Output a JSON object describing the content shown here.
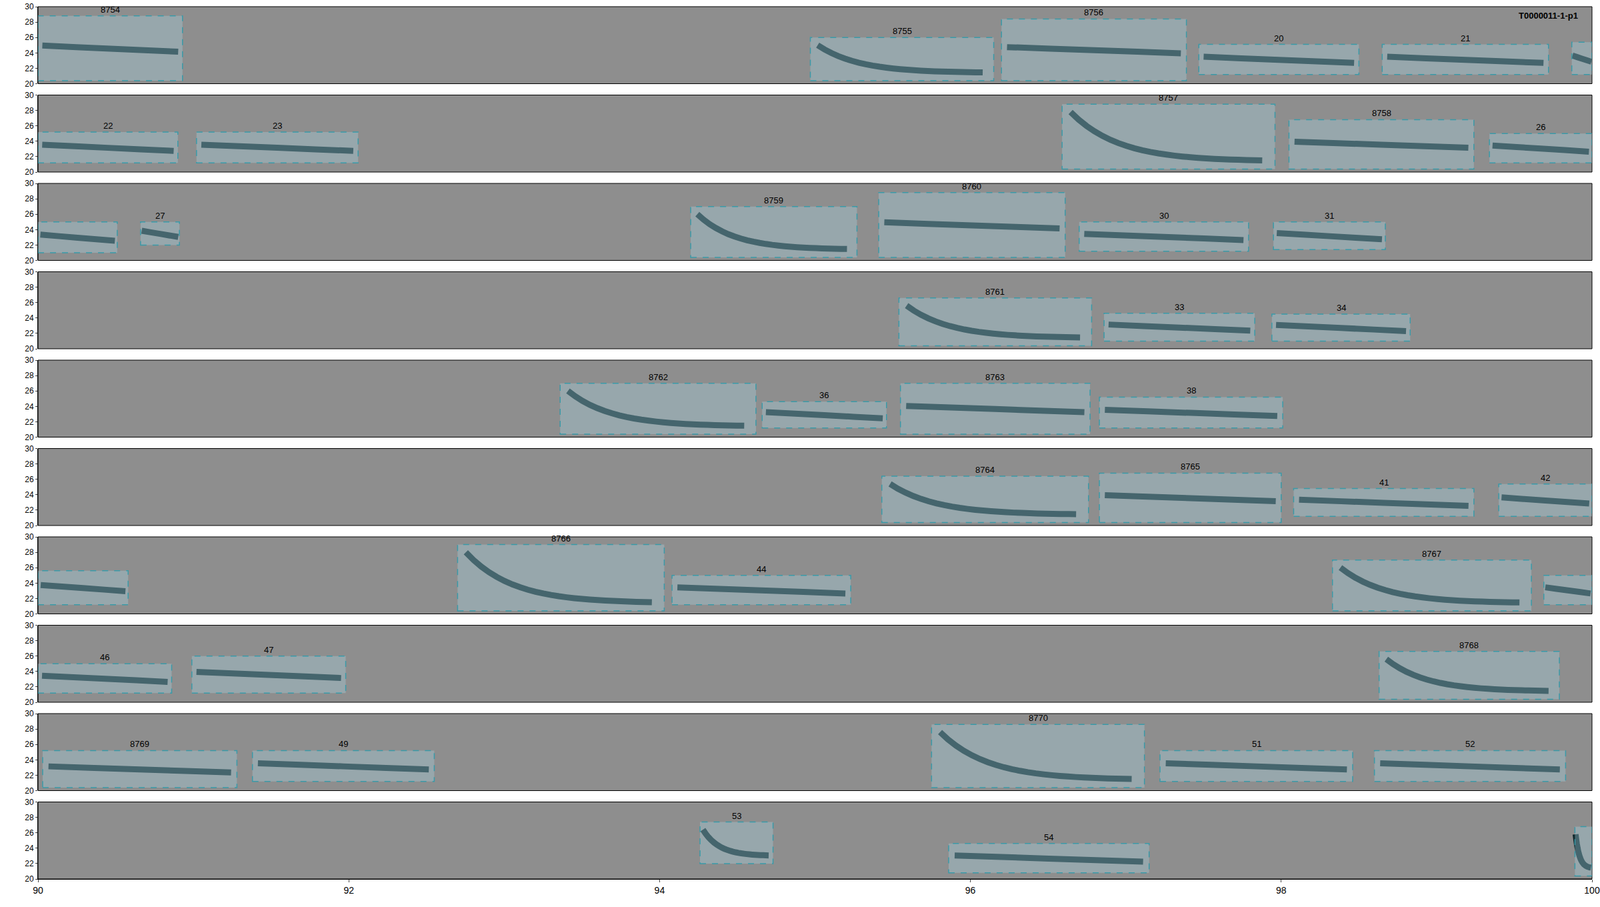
{
  "chart_data": {
    "type": "spectrogram",
    "title": "T0000011-1-p1",
    "color": "#3a9aa8",
    "xlim": [
      90,
      100
    ],
    "xticks": [
      90,
      92,
      94,
      96,
      98,
      100
    ],
    "ylim": [
      20,
      30
    ],
    "yticks": [
      20,
      22,
      24,
      26,
      28,
      30
    ],
    "panels": [
      {
        "boxes": [
          {
            "label": "8754",
            "x": [
              90.0,
              90.93
            ],
            "y": [
              20.4,
              28.8
            ],
            "marker": "flat"
          },
          {
            "label": "8755",
            "x": [
              94.97,
              96.15
            ],
            "y": [
              20.4,
              26.0
            ],
            "marker": "downsweep"
          },
          {
            "label": "8756",
            "x": [
              96.2,
              97.39
            ],
            "y": [
              20.4,
              28.4
            ],
            "marker": "flat"
          },
          {
            "label": "20",
            "x": [
              97.47,
              98.5
            ],
            "y": [
              21.2,
              25.1
            ],
            "marker": "flat"
          },
          {
            "label": "21",
            "x": [
              98.65,
              99.72
            ],
            "y": [
              21.2,
              25.1
            ],
            "marker": "flat"
          },
          {
            "label": null,
            "x": [
              99.87,
              100.0
            ],
            "y": [
              21.2,
              25.4
            ],
            "marker": "flat"
          }
        ]
      },
      {
        "boxes": [
          {
            "label": "22",
            "x": [
              90.0,
              90.9
            ],
            "y": [
              21.2,
              25.2
            ],
            "marker": "flat"
          },
          {
            "label": "23",
            "x": [
              91.02,
              92.06
            ],
            "y": [
              21.2,
              25.2
            ],
            "marker": "flat"
          },
          {
            "label": "8757",
            "x": [
              96.59,
              97.96
            ],
            "y": [
              20.4,
              28.8
            ],
            "marker": "downsweep"
          },
          {
            "label": "8758",
            "x": [
              98.05,
              99.24
            ],
            "y": [
              20.4,
              26.8
            ],
            "marker": "flat"
          },
          {
            "label": "26",
            "x": [
              99.34,
              100.0
            ],
            "y": [
              21.2,
              25.0
            ],
            "marker": "flat"
          }
        ]
      },
      {
        "boxes": [
          {
            "label": null,
            "x": [
              90.0,
              90.51
            ],
            "y": [
              21.0,
              25.0
            ],
            "marker": "flat"
          },
          {
            "label": "27",
            "x": [
              90.66,
              90.91
            ],
            "y": [
              22.0,
              25.0
            ],
            "marker": "flat"
          },
          {
            "label": "8759",
            "x": [
              94.2,
              95.27
            ],
            "y": [
              20.4,
              27.0
            ],
            "marker": "downsweep"
          },
          {
            "label": "8760",
            "x": [
              95.41,
              96.61
            ],
            "y": [
              20.4,
              28.8
            ],
            "marker": "flat"
          },
          {
            "label": "30",
            "x": [
              96.7,
              97.79
            ],
            "y": [
              21.2,
              25.0
            ],
            "marker": "flat"
          },
          {
            "label": "31",
            "x": [
              97.95,
              98.67
            ],
            "y": [
              21.4,
              25.0
            ],
            "marker": "flat"
          }
        ]
      },
      {
        "boxes": [
          {
            "label": "8761",
            "x": [
              95.54,
              96.78
            ],
            "y": [
              20.4,
              26.6
            ],
            "marker": "downsweep"
          },
          {
            "label": "33",
            "x": [
              96.86,
              97.83
            ],
            "y": [
              21.0,
              24.6
            ],
            "marker": "flat"
          },
          {
            "label": "34",
            "x": [
              97.94,
              98.83
            ],
            "y": [
              21.0,
              24.5
            ],
            "marker": "flat"
          }
        ]
      },
      {
        "boxes": [
          {
            "label": "8762",
            "x": [
              93.36,
              94.62
            ],
            "y": [
              20.4,
              27.0
            ],
            "marker": "downsweep"
          },
          {
            "label": "36",
            "x": [
              94.66,
              95.46
            ],
            "y": [
              21.2,
              24.6
            ],
            "marker": "flat"
          },
          {
            "label": "8763",
            "x": [
              95.55,
              96.77
            ],
            "y": [
              20.4,
              27.0
            ],
            "marker": "flat"
          },
          {
            "label": "38",
            "x": [
              96.83,
              98.01
            ],
            "y": [
              21.2,
              25.2
            ],
            "marker": "flat"
          }
        ]
      },
      {
        "boxes": [
          {
            "label": "8764",
            "x": [
              95.43,
              96.76
            ],
            "y": [
              20.4,
              26.4
            ],
            "marker": "downsweep"
          },
          {
            "label": "8765",
            "x": [
              96.83,
              98.0
            ],
            "y": [
              20.4,
              26.8
            ],
            "marker": "flat"
          },
          {
            "label": "41",
            "x": [
              98.08,
              99.24
            ],
            "y": [
              21.2,
              24.8
            ],
            "marker": "flat"
          },
          {
            "label": "42",
            "x": [
              99.4,
              100.0
            ],
            "y": [
              21.2,
              25.4
            ],
            "marker": "flat"
          }
        ]
      },
      {
        "boxes": [
          {
            "label": null,
            "x": [
              90.0,
              90.58
            ],
            "y": [
              21.2,
              25.6
            ],
            "marker": "flat"
          },
          {
            "label": "8766",
            "x": [
              92.7,
              94.03
            ],
            "y": [
              20.4,
              29.0
            ],
            "marker": "downsweep"
          },
          {
            "label": "44",
            "x": [
              94.08,
              95.23
            ],
            "y": [
              21.2,
              25.0
            ],
            "marker": "flat"
          },
          {
            "label": "8767",
            "x": [
              98.33,
              99.61
            ],
            "y": [
              20.4,
              27.0
            ],
            "marker": "downsweep"
          },
          {
            "label": null,
            "x": [
              99.69,
              100.0
            ],
            "y": [
              21.2,
              25.0
            ],
            "marker": "flat"
          }
        ]
      },
      {
        "boxes": [
          {
            "label": "46",
            "x": [
              90.0,
              90.86
            ],
            "y": [
              21.2,
              25.0
            ],
            "marker": "flat"
          },
          {
            "label": "47",
            "x": [
              90.99,
              91.98
            ],
            "y": [
              21.2,
              26.0
            ],
            "marker": "flat"
          },
          {
            "label": "8768",
            "x": [
              98.63,
              99.79
            ],
            "y": [
              20.4,
              26.6
            ],
            "marker": "downsweep"
          }
        ]
      },
      {
        "boxes": [
          {
            "label": "8769",
            "x": [
              90.03,
              91.28
            ],
            "y": [
              20.4,
              25.2
            ],
            "marker": "flat"
          },
          {
            "label": "49",
            "x": [
              91.38,
              92.55
            ],
            "y": [
              21.2,
              25.2
            ],
            "marker": "flat"
          },
          {
            "label": "8770",
            "x": [
              95.75,
              97.12
            ],
            "y": [
              20.4,
              28.6
            ],
            "marker": "downsweep"
          },
          {
            "label": "51",
            "x": [
              97.22,
              98.46
            ],
            "y": [
              21.2,
              25.2
            ],
            "marker": "flat"
          },
          {
            "label": "52",
            "x": [
              98.6,
              99.83
            ],
            "y": [
              21.2,
              25.2
            ],
            "marker": "flat"
          }
        ]
      },
      {
        "boxes": [
          {
            "label": "53",
            "x": [
              94.26,
              94.73
            ],
            "y": [
              22.0,
              27.4
            ],
            "marker": "downsweep"
          },
          {
            "label": "54",
            "x": [
              95.86,
              97.15
            ],
            "y": [
              20.8,
              24.6
            ],
            "marker": "flat"
          },
          {
            "label": null,
            "x": [
              99.89,
              100.0
            ],
            "y": [
              20.4,
              26.8
            ],
            "marker": "downsweep"
          }
        ]
      }
    ]
  }
}
